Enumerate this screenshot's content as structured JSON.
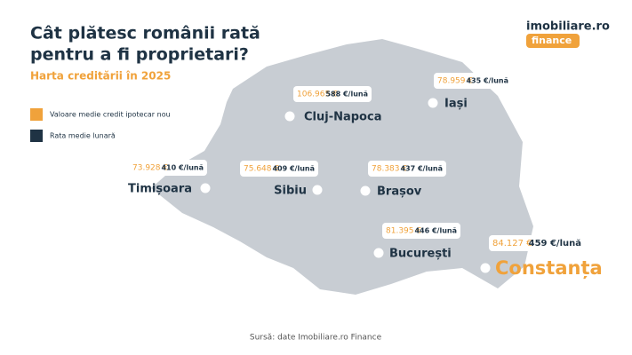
{
  "header": {
    "title_line1": "Cât plătesc românii rată",
    "title_line2": "pentru a fi proprietari?",
    "subtitle": "Harta creditării în 2025"
  },
  "logo": {
    "brand": "imobiliare.ro",
    "sub": "finance"
  },
  "legend": {
    "credit": "Valoare medie credit ipotecar nou",
    "monthly": "Rata medie lunară"
  },
  "cities": [
    {
      "name": "Cluj-Napoca",
      "credit": "106.965 €",
      "monthly": "588 €/lună"
    },
    {
      "name": "Iași",
      "credit": "78.959 €",
      "monthly": "435 €/lună"
    },
    {
      "name": "Timișoara",
      "credit": "73.928 €",
      "monthly": "410 €/lună"
    },
    {
      "name": "Sibiu",
      "credit": "75.648 €",
      "monthly": "409 €/lună"
    },
    {
      "name": "Brașov",
      "credit": "78.383 €",
      "monthly": "437 €/lună"
    },
    {
      "name": "București",
      "credit": "81.395 €",
      "monthly": "446 €/lună"
    },
    {
      "name": "Constanța",
      "credit": "84.127 €",
      "monthly": "459 €/lună"
    }
  ],
  "source": "Sursă: date Imobiliare.ro Finance"
}
